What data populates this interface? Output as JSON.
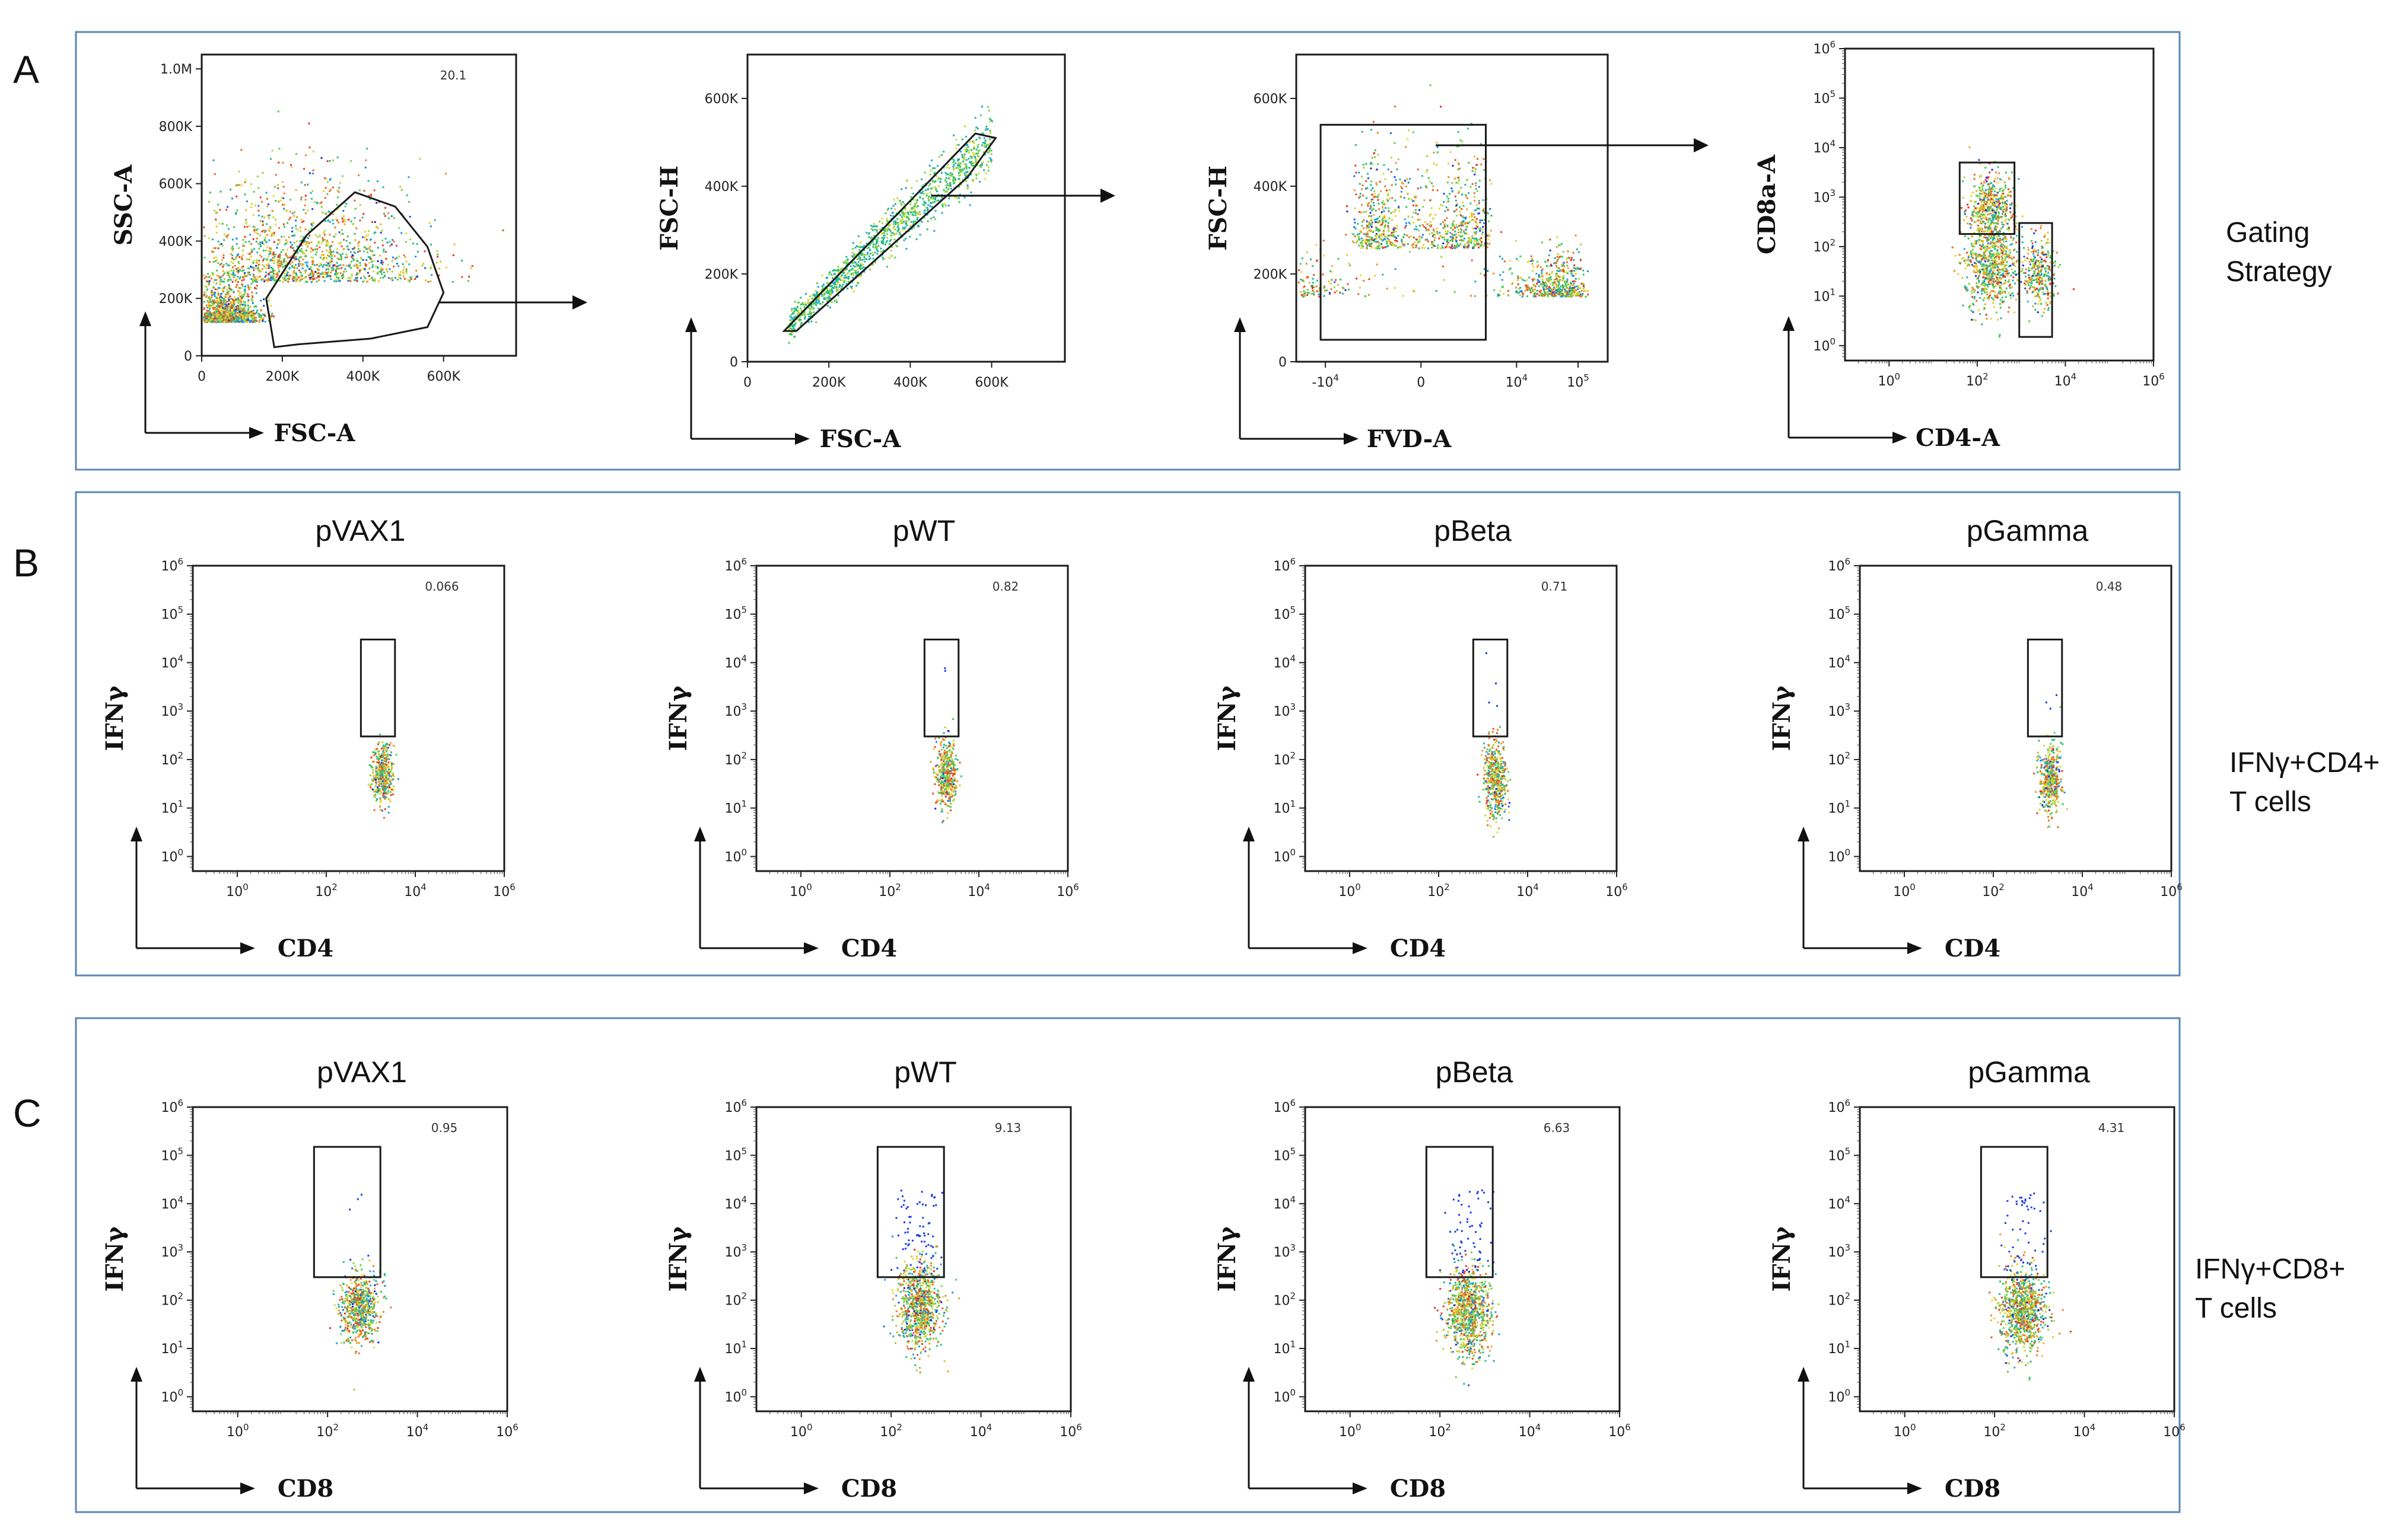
{
  "figure": {
    "panel_letters": [
      "A",
      "B",
      "C"
    ],
    "row_labels": {
      "A": [
        "Gating",
        "Strategy"
      ],
      "B": [
        "IFNγ+CD4+",
        "T cells"
      ],
      "C": [
        "IFNγ+CD8+",
        "T cells"
      ]
    }
  },
  "chart_data": [
    {
      "type": "scatter",
      "panel": "A",
      "title": "",
      "xlabel": "FSC-A",
      "ylabel": "SSC-A",
      "scale": "linear",
      "x_ticks": [
        "0",
        "200K",
        "400K",
        "600K"
      ],
      "y_ticks": [
        "0",
        "200K",
        "400K",
        "600K",
        "800K",
        "1.0M"
      ],
      "xlim": [
        0,
        780000
      ],
      "ylim": [
        0,
        1050000
      ],
      "gate": {
        "shape": "polygon",
        "value": "20.1"
      },
      "populations": [
        {
          "x": 60000,
          "y": 120000,
          "sx": 40000,
          "sy": 70000,
          "n": 1100
        },
        {
          "x": 250000,
          "y": 260000,
          "sx": 150000,
          "sy": 180000,
          "n": 1400
        }
      ]
    },
    {
      "type": "scatter",
      "panel": "A",
      "title": "",
      "xlabel": "FSC-A",
      "ylabel": "FSC-H",
      "scale": "linear",
      "x_ticks": [
        "0",
        "200K",
        "400K",
        "600K"
      ],
      "y_ticks": [
        "0",
        "200K",
        "400K",
        "600K"
      ],
      "xlim": [
        0,
        780000
      ],
      "ylim": [
        0,
        700000
      ],
      "gate": {
        "shape": "polygon",
        "value": ""
      },
      "populations": [
        {
          "diag": true,
          "x0": 100000,
          "x1": 600000,
          "slope": 0.85,
          "spread": 12000,
          "n": 1200
        }
      ]
    },
    {
      "type": "scatter",
      "panel": "A",
      "title": "",
      "xlabel": "FVD-A",
      "ylabel": "FSC-H",
      "scale": "biex",
      "x_ticks": [
        "-10⁴",
        "0",
        "10⁴",
        "10⁵"
      ],
      "y_ticks": [
        "0",
        "200K",
        "400K",
        "600K"
      ],
      "xlim": [
        -30000,
        300000
      ],
      "ylim": [
        0,
        700000
      ],
      "gate": {
        "shape": "rect",
        "value": ""
      },
      "populations": [
        {
          "x": 0,
          "y": 260000,
          "sx": 1500,
          "sy": 110000,
          "n": 900
        },
        {
          "x": 30000,
          "y": 150000,
          "sx": 40000,
          "sy": 50000,
          "n": 700
        }
      ]
    },
    {
      "type": "scatter",
      "panel": "A",
      "title": "",
      "xlabel": "CD4-A",
      "ylabel": "CD8a-A",
      "scale": "log",
      "x_ticks": [
        "10⁰",
        "10²",
        "10⁴",
        "10⁶"
      ],
      "y_ticks": [
        "10⁰",
        "10¹",
        "10²",
        "10³",
        "10⁴",
        "10⁵",
        "10⁶"
      ],
      "xlim": [
        0.1,
        1000000
      ],
      "ylim": [
        0.5,
        1000000
      ],
      "gate": {
        "shape": "two-rect",
        "value": ""
      },
      "populations": [
        {
          "x": 200,
          "y": 600,
          "sx": 0.25,
          "sy": 0.35,
          "n": 500
        },
        {
          "x": 200,
          "y": 40,
          "sx": 0.3,
          "sy": 0.45,
          "n": 700
        },
        {
          "x": 2500,
          "y": 30,
          "sx": 0.18,
          "sy": 0.35,
          "n": 300
        }
      ]
    },
    {
      "type": "scatter",
      "panel": "B",
      "title": "pVAX1",
      "xlabel": "CD4",
      "ylabel": "IFNγ",
      "scale": "log",
      "gate": {
        "shape": "rect",
        "value": "0.066"
      },
      "populations": [
        {
          "x": 1800,
          "y": 50,
          "sx": 0.12,
          "sy": 0.3,
          "n": 380
        }
      ],
      "sparse_high": 0
    },
    {
      "type": "scatter",
      "panel": "B",
      "title": "pWT",
      "xlabel": "CD4",
      "ylabel": "IFNγ",
      "scale": "log",
      "gate": {
        "shape": "rect",
        "value": "0.82"
      },
      "populations": [
        {
          "x": 1800,
          "y": 50,
          "sx": 0.12,
          "sy": 0.35,
          "n": 420
        }
      ],
      "sparse_high": 4
    },
    {
      "type": "scatter",
      "panel": "B",
      "title": "pBeta",
      "xlabel": "CD4",
      "ylabel": "IFNγ",
      "scale": "log",
      "gate": {
        "shape": "rect",
        "value": "0.71"
      },
      "populations": [
        {
          "x": 1800,
          "y": 40,
          "sx": 0.13,
          "sy": 0.4,
          "n": 480
        }
      ],
      "sparse_high": 4
    },
    {
      "type": "scatter",
      "panel": "B",
      "title": "pGamma",
      "xlabel": "CD4",
      "ylabel": "IFNγ",
      "scale": "log",
      "gate": {
        "shape": "rect",
        "value": "0.48"
      },
      "populations": [
        {
          "x": 1800,
          "y": 40,
          "sx": 0.12,
          "sy": 0.35,
          "n": 420
        }
      ],
      "sparse_high": 3
    },
    {
      "type": "scatter",
      "panel": "C",
      "title": "pVAX1",
      "xlabel": "CD8",
      "ylabel": "IFNγ",
      "scale": "log",
      "gate": {
        "shape": "rect",
        "value": "0.95"
      },
      "populations": [
        {
          "x": 500,
          "y": 70,
          "sx": 0.22,
          "sy": 0.35,
          "n": 650
        }
      ],
      "sparse_high": 5
    },
    {
      "type": "scatter",
      "panel": "C",
      "title": "pWT",
      "xlabel": "CD8",
      "ylabel": "IFNγ",
      "scale": "log",
      "gate": {
        "shape": "rect",
        "value": "9.13"
      },
      "populations": [
        {
          "x": 400,
          "y": 80,
          "sx": 0.25,
          "sy": 0.45,
          "n": 850
        }
      ],
      "sparse_high": 70
    },
    {
      "type": "scatter",
      "panel": "C",
      "title": "pBeta",
      "xlabel": "CD8",
      "ylabel": "IFNγ",
      "scale": "log",
      "gate": {
        "shape": "rect",
        "value": "6.63"
      },
      "populations": [
        {
          "x": 400,
          "y": 60,
          "sx": 0.25,
          "sy": 0.45,
          "n": 900
        }
      ],
      "sparse_high": 60
    },
    {
      "type": "scatter",
      "panel": "C",
      "title": "pGamma",
      "xlabel": "CD8",
      "ylabel": "IFNγ",
      "scale": "log",
      "gate": {
        "shape": "rect",
        "value": "4.31"
      },
      "populations": [
        {
          "x": 400,
          "y": 60,
          "sx": 0.25,
          "sy": 0.45,
          "n": 900
        }
      ],
      "sparse_high": 45
    }
  ]
}
